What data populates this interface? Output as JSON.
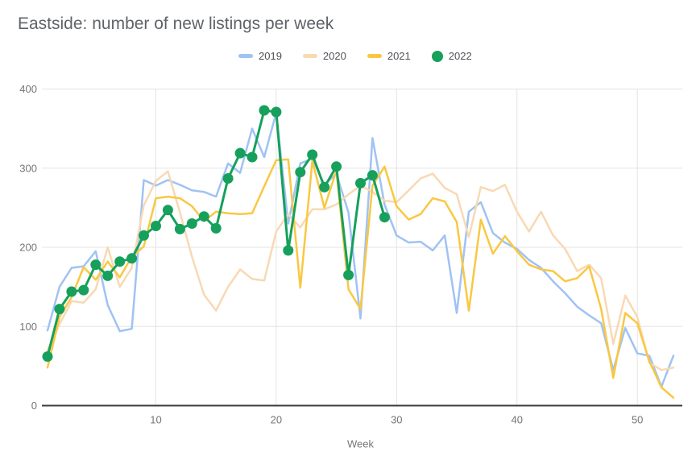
{
  "title": "Eastside: number of new listings per week",
  "colors": {
    "series_2019": "#a0c2f4",
    "series_2020": "#f8d9b4",
    "series_2021": "#f9c842",
    "series_2022": "#16a05c",
    "grid": "#e3e3e3",
    "axis_line": "#3c3c3c",
    "title_text": "#5f6368",
    "tick_text": "#757575",
    "background": "#ffffff"
  },
  "legend": [
    {
      "label": "2019",
      "color": "#a0c2f4",
      "shape": "dash"
    },
    {
      "label": "2020",
      "color": "#f8d9b4",
      "shape": "dash"
    },
    {
      "label": "2021",
      "color": "#f9c842",
      "shape": "dash"
    },
    {
      "label": "2022",
      "color": "#16a05c",
      "shape": "circle"
    }
  ],
  "chart_data": {
    "type": "line",
    "title": "Eastside: number of new listings per week",
    "xlabel": "Week",
    "ylabel": "",
    "xlim": [
      1,
      53
    ],
    "ylim": [
      0,
      400
    ],
    "x_ticks": [
      10,
      20,
      30,
      40,
      50
    ],
    "y_ticks": [
      0,
      100,
      200,
      300,
      400
    ],
    "grid": true,
    "legend_position": "top",
    "x_description": "week number, values are weekly; series start at week 1",
    "series": [
      {
        "name": "2019",
        "style": "line",
        "values": [
          95,
          150,
          174,
          176,
          195,
          127,
          94,
          97,
          285,
          278,
          285,
          279,
          272,
          270,
          264,
          306,
          294,
          350,
          314,
          370,
          230,
          306,
          312,
          279,
          293,
          244,
          110,
          338,
          254,
          215,
          206,
          207,
          196,
          215,
          117,
          245,
          257,
          218,
          206,
          198,
          184,
          174,
          157,
          142,
          125,
          114,
          104,
          45,
          98,
          66,
          63,
          24,
          63
        ]
      },
      {
        "name": "2020",
        "style": "line",
        "values": [
          70,
          103,
          132,
          130,
          147,
          200,
          150,
          174,
          253,
          284,
          296,
          244,
          188,
          140,
          120,
          150,
          172,
          160,
          158,
          220,
          242,
          225,
          248,
          248,
          254,
          267,
          278,
          270,
          259,
          257,
          272,
          287,
          293,
          275,
          267,
          213,
          276,
          271,
          279,
          245,
          220,
          245,
          215,
          198,
          170,
          178,
          161,
          78,
          139,
          112,
          54,
          45,
          48
        ]
      },
      {
        "name": "2021",
        "style": "line",
        "values": [
          48,
          112,
          137,
          175,
          159,
          182,
          162,
          188,
          201,
          262,
          264,
          262,
          252,
          233,
          245,
          243,
          242,
          243,
          277,
          310,
          311,
          149,
          309,
          250,
          297,
          147,
          122,
          278,
          302,
          252,
          235,
          242,
          262,
          258,
          232,
          120,
          235,
          192,
          214,
          195,
          178,
          172,
          170,
          157,
          161,
          176,
          122,
          35,
          117,
          104,
          56,
          23,
          10
        ]
      },
      {
        "name": "2022",
        "style": "line-with-markers",
        "values": [
          62,
          122,
          144,
          146,
          178,
          164,
          182,
          186,
          215,
          227,
          247,
          223,
          230,
          239,
          224,
          287,
          319,
          314,
          373,
          371,
          196,
          295,
          317,
          276,
          302,
          165,
          281,
          291,
          238
        ]
      }
    ]
  }
}
